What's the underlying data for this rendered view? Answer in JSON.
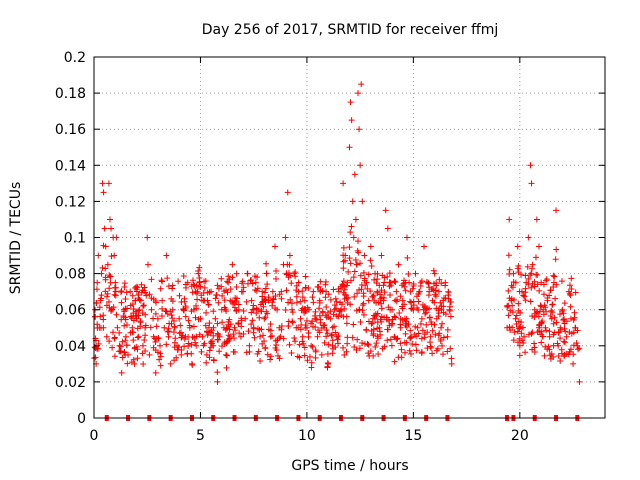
{
  "chart_data": {
    "type": "scatter",
    "title": "Day 256 of 2017, SRMTID for receiver ffmj",
    "xlabel": "GPS time / hours",
    "ylabel": "SRMTID / TECUs",
    "xlim": [
      0,
      24
    ],
    "ylim": [
      0,
      0.2
    ],
    "x_ticks": [
      0,
      5,
      10,
      15,
      20
    ],
    "x_tick_labels": [
      "0",
      "5",
      "10",
      "15",
      "20"
    ],
    "y_ticks": [
      0,
      0.02,
      0.04,
      0.06,
      0.08,
      0.1,
      0.12,
      0.14,
      0.16,
      0.18,
      0.2
    ],
    "y_tick_labels": [
      "0",
      "0.02",
      "0.04",
      "0.06",
      "0.08",
      "0.1",
      "0.12",
      "0.14",
      "0.16",
      "0.18",
      "0.2"
    ],
    "grid": true,
    "marker_color": "#ff0000",
    "baseline_markers": {
      "x": [
        0.6,
        1.6,
        2.6,
        3.6,
        4.6,
        5.6,
        6.6,
        7.6,
        8.6,
        9.6,
        10.6,
        11.6,
        12.6,
        13.6,
        14.6,
        15.6,
        16.6,
        19.4,
        19.7,
        20.7,
        21.7,
        22.7
      ],
      "y": 0
    },
    "series": [
      {
        "name": "",
        "segments": [
          {
            "x_start": 0.0,
            "x_end": 16.8
          },
          {
            "x_start": 19.4,
            "x_end": 22.8
          }
        ],
        "points": [
          [
            0.05,
            0.06
          ],
          [
            0.1,
            0.03
          ],
          [
            0.15,
            0.075
          ],
          [
            0.2,
            0.09
          ],
          [
            0.25,
            0.05
          ],
          [
            0.3,
            0.065
          ],
          [
            0.35,
            0.08
          ],
          [
            0.4,
            0.13
          ],
          [
            0.45,
            0.125
          ],
          [
            0.5,
            0.105
          ],
          [
            0.55,
            0.095
          ],
          [
            0.6,
            0.045
          ],
          [
            0.65,
            0.085
          ],
          [
            0.7,
            0.13
          ],
          [
            0.75,
            0.11
          ],
          [
            0.8,
            0.105
          ],
          [
            0.85,
            0.06
          ],
          [
            0.9,
            0.1
          ],
          [
            0.95,
            0.09
          ],
          [
            1.0,
            0.075
          ],
          [
            1.05,
            0.1
          ],
          [
            1.1,
            0.05
          ],
          [
            1.2,
            0.04
          ],
          [
            1.3,
            0.025
          ],
          [
            1.4,
            0.06
          ],
          [
            1.5,
            0.045
          ],
          [
            1.6,
            0.035
          ],
          [
            1.7,
            0.07
          ],
          [
            1.8,
            0.05
          ],
          [
            1.9,
            0.03
          ],
          [
            2.0,
            0.055
          ],
          [
            2.1,
            0.045
          ],
          [
            2.2,
            0.065
          ],
          [
            2.3,
            0.04
          ],
          [
            2.4,
            0.05
          ],
          [
            2.5,
            0.1
          ],
          [
            2.6,
            0.035
          ],
          [
            2.7,
            0.06
          ],
          [
            2.8,
            0.045
          ],
          [
            2.9,
            0.025
          ],
          [
            3.0,
            0.055
          ],
          [
            3.1,
            0.04
          ],
          [
            3.2,
            0.065
          ],
          [
            3.3,
            0.05
          ],
          [
            3.4,
            0.09
          ],
          [
            3.5,
            0.045
          ],
          [
            3.6,
            0.03
          ],
          [
            3.7,
            0.06
          ],
          [
            3.8,
            0.05
          ],
          [
            3.9,
            0.04
          ],
          [
            4.0,
            0.055
          ],
          [
            4.1,
            0.035
          ],
          [
            4.2,
            0.06
          ],
          [
            4.3,
            0.045
          ],
          [
            4.4,
            0.075
          ],
          [
            4.5,
            0.05
          ],
          [
            4.6,
            0.03
          ],
          [
            4.7,
            0.06
          ],
          [
            4.8,
            0.04
          ],
          [
            4.9,
            0.08
          ],
          [
            5.0,
            0.055
          ],
          [
            5.1,
            0.045
          ],
          [
            5.2,
            0.065
          ],
          [
            5.3,
            0.035
          ],
          [
            5.4,
            0.05
          ],
          [
            5.5,
            0.07
          ],
          [
            5.6,
            0.04
          ],
          [
            5.7,
            0.055
          ],
          [
            5.8,
            0.02
          ],
          [
            5.9,
            0.045
          ],
          [
            6.0,
            0.06
          ],
          [
            6.1,
            0.05
          ],
          [
            6.2,
            0.035
          ],
          [
            6.3,
            0.075
          ],
          [
            6.4,
            0.065
          ],
          [
            6.5,
            0.085
          ],
          [
            6.6,
            0.05
          ],
          [
            6.7,
            0.08
          ],
          [
            6.8,
            0.06
          ],
          [
            6.9,
            0.045
          ],
          [
            7.0,
            0.07
          ],
          [
            7.1,
            0.055
          ],
          [
            7.2,
            0.08
          ],
          [
            7.3,
            0.04
          ],
          [
            7.4,
            0.065
          ],
          [
            7.5,
            0.05
          ],
          [
            7.6,
            0.075
          ],
          [
            7.7,
            0.06
          ],
          [
            7.8,
            0.045
          ],
          [
            7.9,
            0.07
          ],
          [
            8.0,
            0.055
          ],
          [
            8.1,
            0.08
          ],
          [
            8.2,
            0.065
          ],
          [
            8.3,
            0.045
          ],
          [
            8.4,
            0.07
          ],
          [
            8.5,
            0.095
          ],
          [
            8.6,
            0.06
          ],
          [
            8.7,
            0.05
          ],
          [
            8.8,
            0.07
          ],
          [
            8.9,
            0.085
          ],
          [
            9.0,
            0.1
          ],
          [
            9.1,
            0.125
          ],
          [
            9.2,
            0.09
          ],
          [
            9.3,
            0.06
          ],
          [
            9.4,
            0.08
          ],
          [
            9.5,
            0.05
          ],
          [
            9.6,
            0.07
          ],
          [
            9.7,
            0.055
          ],
          [
            9.8,
            0.045
          ],
          [
            9.9,
            0.065
          ],
          [
            10.0,
            0.05
          ],
          [
            10.1,
            0.06
          ],
          [
            10.2,
            0.04
          ],
          [
            10.3,
            0.07
          ],
          [
            10.4,
            0.055
          ],
          [
            10.5,
            0.045
          ],
          [
            10.6,
            0.065
          ],
          [
            10.7,
            0.035
          ],
          [
            10.8,
            0.05
          ],
          [
            10.9,
            0.07
          ],
          [
            11.0,
            0.03
          ],
          [
            11.1,
            0.055
          ],
          [
            11.2,
            0.04
          ],
          [
            11.3,
            0.06
          ],
          [
            11.4,
            0.045
          ],
          [
            11.5,
            0.07
          ],
          [
            11.6,
            0.06
          ],
          [
            11.7,
            0.13
          ],
          [
            11.8,
            0.09
          ],
          [
            11.9,
            0.075
          ],
          [
            12.0,
            0.15
          ],
          [
            12.05,
            0.175
          ],
          [
            12.1,
            0.165
          ],
          [
            12.15,
            0.12
          ],
          [
            12.2,
            0.1
          ],
          [
            12.25,
            0.135
          ],
          [
            12.3,
            0.11
          ],
          [
            12.35,
            0.085
          ],
          [
            12.4,
            0.18
          ],
          [
            12.45,
            0.16
          ],
          [
            12.5,
            0.14
          ],
          [
            12.55,
            0.185
          ],
          [
            12.6,
            0.12
          ],
          [
            12.7,
            0.09
          ],
          [
            12.8,
            0.075
          ],
          [
            12.9,
            0.065
          ],
          [
            13.0,
            0.095
          ],
          [
            13.1,
            0.055
          ],
          [
            13.2,
            0.08
          ],
          [
            13.3,
            0.07
          ],
          [
            13.4,
            0.05
          ],
          [
            13.5,
            0.09
          ],
          [
            13.6,
            0.065
          ],
          [
            13.7,
            0.115
          ],
          [
            13.8,
            0.105
          ],
          [
            13.9,
            0.075
          ],
          [
            14.0,
            0.06
          ],
          [
            14.1,
            0.045
          ],
          [
            14.2,
            0.07
          ],
          [
            14.3,
            0.085
          ],
          [
            14.4,
            0.05
          ],
          [
            14.5,
            0.065
          ],
          [
            14.6,
            0.055
          ],
          [
            14.7,
            0.1
          ],
          [
            14.8,
            0.075
          ],
          [
            14.9,
            0.045
          ],
          [
            15.0,
            0.06
          ],
          [
            15.1,
            0.08
          ],
          [
            15.2,
            0.05
          ],
          [
            15.3,
            0.07
          ],
          [
            15.4,
            0.055
          ],
          [
            15.5,
            0.095
          ],
          [
            15.6,
            0.06
          ],
          [
            15.7,
            0.075
          ],
          [
            15.8,
            0.045
          ],
          [
            15.9,
            0.065
          ],
          [
            16.0,
            0.08
          ],
          [
            16.1,
            0.055
          ],
          [
            16.2,
            0.07
          ],
          [
            16.3,
            0.05
          ],
          [
            16.4,
            0.065
          ],
          [
            16.5,
            0.075
          ],
          [
            16.6,
            0.045
          ],
          [
            16.7,
            0.06
          ],
          [
            16.8,
            0.03
          ],
          [
            19.4,
            0.05
          ],
          [
            19.5,
            0.11
          ],
          [
            19.6,
            0.065
          ],
          [
            19.7,
            0.08
          ],
          [
            19.8,
            0.055
          ],
          [
            19.9,
            0.095
          ],
          [
            20.0,
            0.04
          ],
          [
            20.1,
            0.07
          ],
          [
            20.2,
            0.045
          ],
          [
            20.3,
            0.075
          ],
          [
            20.4,
            0.1
          ],
          [
            20.5,
            0.14
          ],
          [
            20.55,
            0.13
          ],
          [
            20.6,
            0.085
          ],
          [
            20.7,
            0.06
          ],
          [
            20.8,
            0.11
          ],
          [
            20.9,
            0.095
          ],
          [
            21.0,
            0.075
          ],
          [
            21.1,
            0.06
          ],
          [
            21.2,
            0.05
          ],
          [
            21.3,
            0.065
          ],
          [
            21.4,
            0.045
          ],
          [
            21.5,
            0.055
          ],
          [
            21.6,
            0.075
          ],
          [
            21.7,
            0.115
          ],
          [
            21.8,
            0.04
          ],
          [
            21.9,
            0.05
          ],
          [
            22.0,
            0.06
          ],
          [
            22.1,
            0.035
          ],
          [
            22.2,
            0.045
          ],
          [
            22.3,
            0.07
          ],
          [
            22.4,
            0.055
          ],
          [
            22.5,
            0.03
          ],
          [
            22.6,
            0.05
          ],
          [
            22.7,
            0.04
          ],
          [
            22.8,
            0.02
          ]
        ]
      }
    ]
  }
}
